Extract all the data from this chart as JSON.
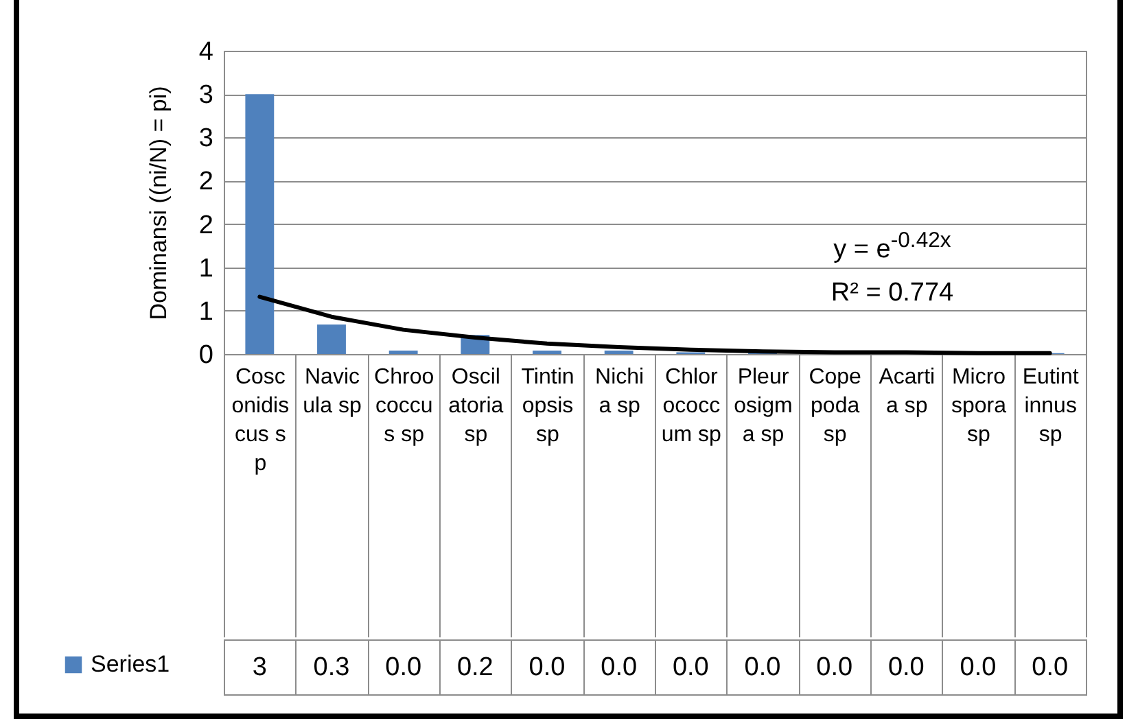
{
  "chart_data": {
    "type": "bar",
    "ylabel": "Dominansi ((ni/N) = pi)",
    "categories": [
      "Cosconidiscus sp",
      "Navicula sp",
      "Chroococcus sp",
      "Oscilatoria sp",
      "Tintinopsis sp",
      "Nichia sp",
      "Chlorococcum sp",
      "Pleurosigma sp",
      "Copepoda sp",
      "Acartia sp",
      "Microspora sp",
      "Eutintinnus sp"
    ],
    "series": [
      {
        "name": "Series1",
        "color": "#4f81bd",
        "values": [
          3,
          0.34,
          0.04,
          0.22,
          0.04,
          0.04,
          0.02,
          0.02,
          0.01,
          0.01,
          0.01,
          0.01
        ],
        "value_labels": [
          "3",
          "0.3",
          "0.0",
          "0.2",
          "0.0",
          "0.0",
          "0.0",
          "0.0",
          "0.0",
          "0.0",
          "0.0",
          "0.0"
        ]
      },
      {
        "type": "line",
        "color": "#000000",
        "values": [
          0.66,
          0.43,
          0.28,
          0.19,
          0.12,
          0.08,
          0.05,
          0.03,
          0.02,
          0.02,
          0.01,
          0.01
        ]
      }
    ],
    "ylim": [
      0,
      3.5
    ],
    "yticks": [
      {
        "value": 0,
        "label": "0"
      },
      {
        "value": 0.5,
        "label": "1"
      },
      {
        "value": 1,
        "label": "1"
      },
      {
        "value": 1.5,
        "label": "2"
      },
      {
        "value": 2,
        "label": "2"
      },
      {
        "value": 2.5,
        "label": "3"
      },
      {
        "value": 3,
        "label": "3"
      },
      {
        "value": 3.5,
        "label": "4"
      }
    ],
    "grid": "y",
    "legend": "bottom left",
    "marker": "none",
    "line_style": "solid",
    "annotations": [
      "y = e$^{-0.42x}$",
      "R² = 0.774"
    ]
  }
}
